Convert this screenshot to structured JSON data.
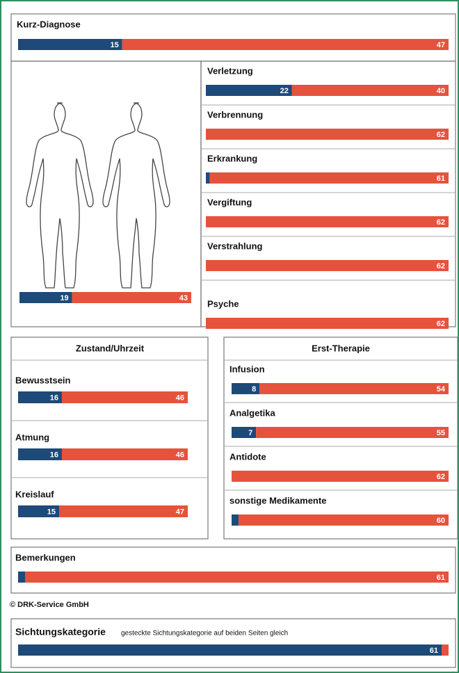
{
  "colors": [
    "#1d4a78",
    "#e5533c"
  ],
  "kurz": {
    "title": "Kurz-Diagnose",
    "bar": [
      15,
      47
    ]
  },
  "body_bar": [
    19,
    43
  ],
  "diagnoses": [
    {
      "label": "Verletzung",
      "bar": [
        22,
        40
      ]
    },
    {
      "label": "Verbrennung",
      "bar": [
        0,
        62
      ]
    },
    {
      "label": "Erkrankung",
      "bar": [
        1,
        61
      ]
    },
    {
      "label": "Vergiftung",
      "bar": [
        0,
        62
      ]
    },
    {
      "label": "Verstrahlung",
      "bar": [
        0,
        62
      ]
    },
    {
      "label": "Psyche",
      "bar": [
        0,
        62
      ]
    }
  ],
  "zustand": {
    "title": "Zustand/Uhrzeit",
    "items": [
      {
        "label": "Bewusstsein",
        "bar": [
          16,
          46
        ]
      },
      {
        "label": "Atmung",
        "bar": [
          16,
          46
        ]
      },
      {
        "label": "Kreislauf",
        "bar": [
          15,
          47
        ]
      }
    ]
  },
  "therapie": {
    "title": "Erst-Therapie",
    "items": [
      {
        "label": "Infusion",
        "bar": [
          8,
          54
        ]
      },
      {
        "label": "Analgetika",
        "bar": [
          7,
          55
        ]
      },
      {
        "label": "Antidote",
        "bar": [
          0,
          62
        ]
      },
      {
        "label": "sonstige Medikamente",
        "bar": [
          2,
          60
        ]
      }
    ]
  },
  "bemerkungen": {
    "title": "Bemerkungen",
    "bar": [
      1,
      61
    ]
  },
  "copyright": "© DRK-Service GmbH",
  "sichtung": {
    "title": "Sichtungskategorie",
    "note": "gesteckte Sichtungskategorie auf beiden Seiten gleich",
    "bar": [
      61,
      1
    ]
  }
}
